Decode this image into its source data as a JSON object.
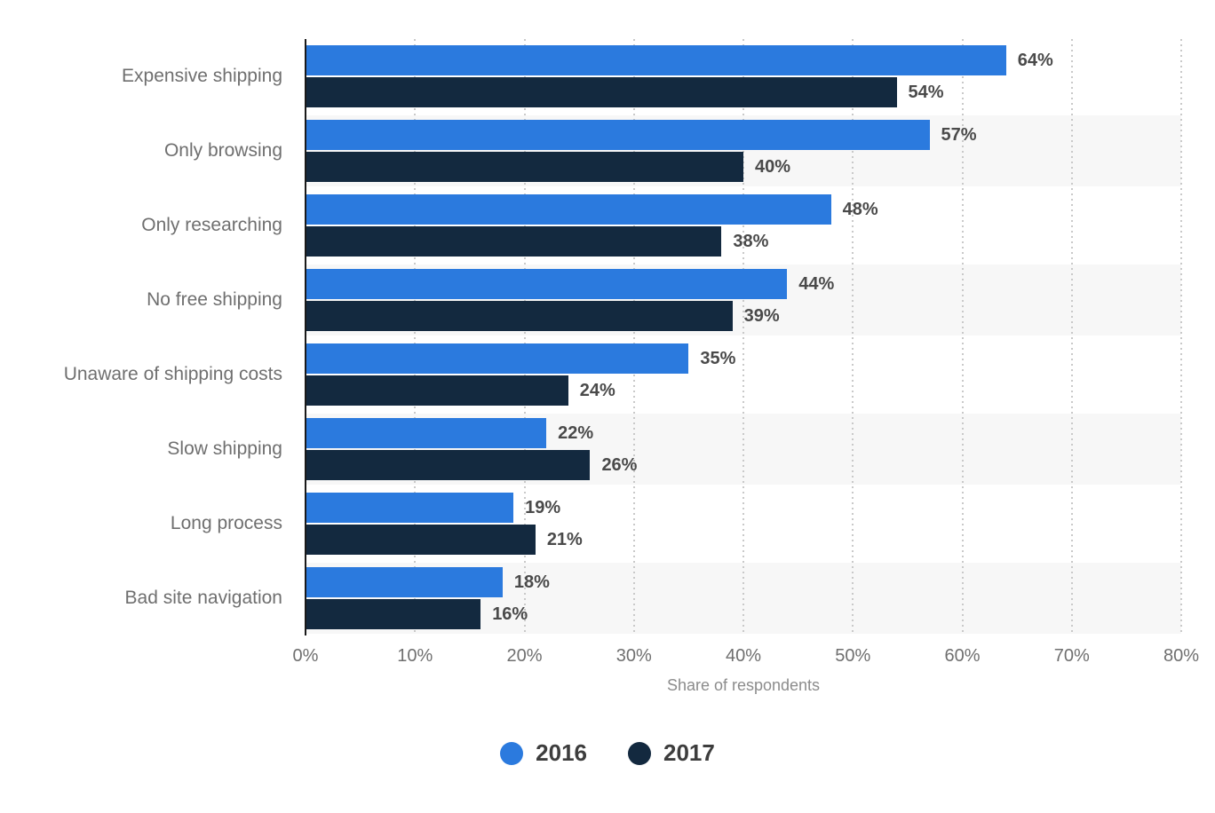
{
  "chart_data": {
    "type": "bar",
    "orientation": "horizontal",
    "title": "",
    "xlabel": "Share of respondents",
    "ylabel": "",
    "xlim": [
      0,
      80
    ],
    "x_ticks": [
      "0%",
      "10%",
      "20%",
      "30%",
      "40%",
      "50%",
      "60%",
      "70%",
      "80%"
    ],
    "grid": "vertical-dotted",
    "legend_position": "bottom",
    "value_suffix": "%",
    "categories": [
      "Expensive shipping",
      "Only browsing",
      "Only researching",
      "No free shipping",
      "Unaware of shipping costs",
      "Slow shipping",
      "Long process",
      "Bad site navigation"
    ],
    "series": [
      {
        "name": "2016",
        "color": "#2b7ade",
        "values": [
          64,
          57,
          48,
          44,
          35,
          22,
          19,
          18
        ]
      },
      {
        "name": "2017",
        "color": "#13293f",
        "values": [
          54,
          40,
          38,
          39,
          24,
          26,
          21,
          16
        ]
      }
    ]
  },
  "colors": {
    "series_2016": "#2b7ade",
    "series_2017": "#13293f",
    "stripe": "#f7f7f7",
    "gridline": "#c9c9c9",
    "axis_line": "#1a1a1a"
  }
}
